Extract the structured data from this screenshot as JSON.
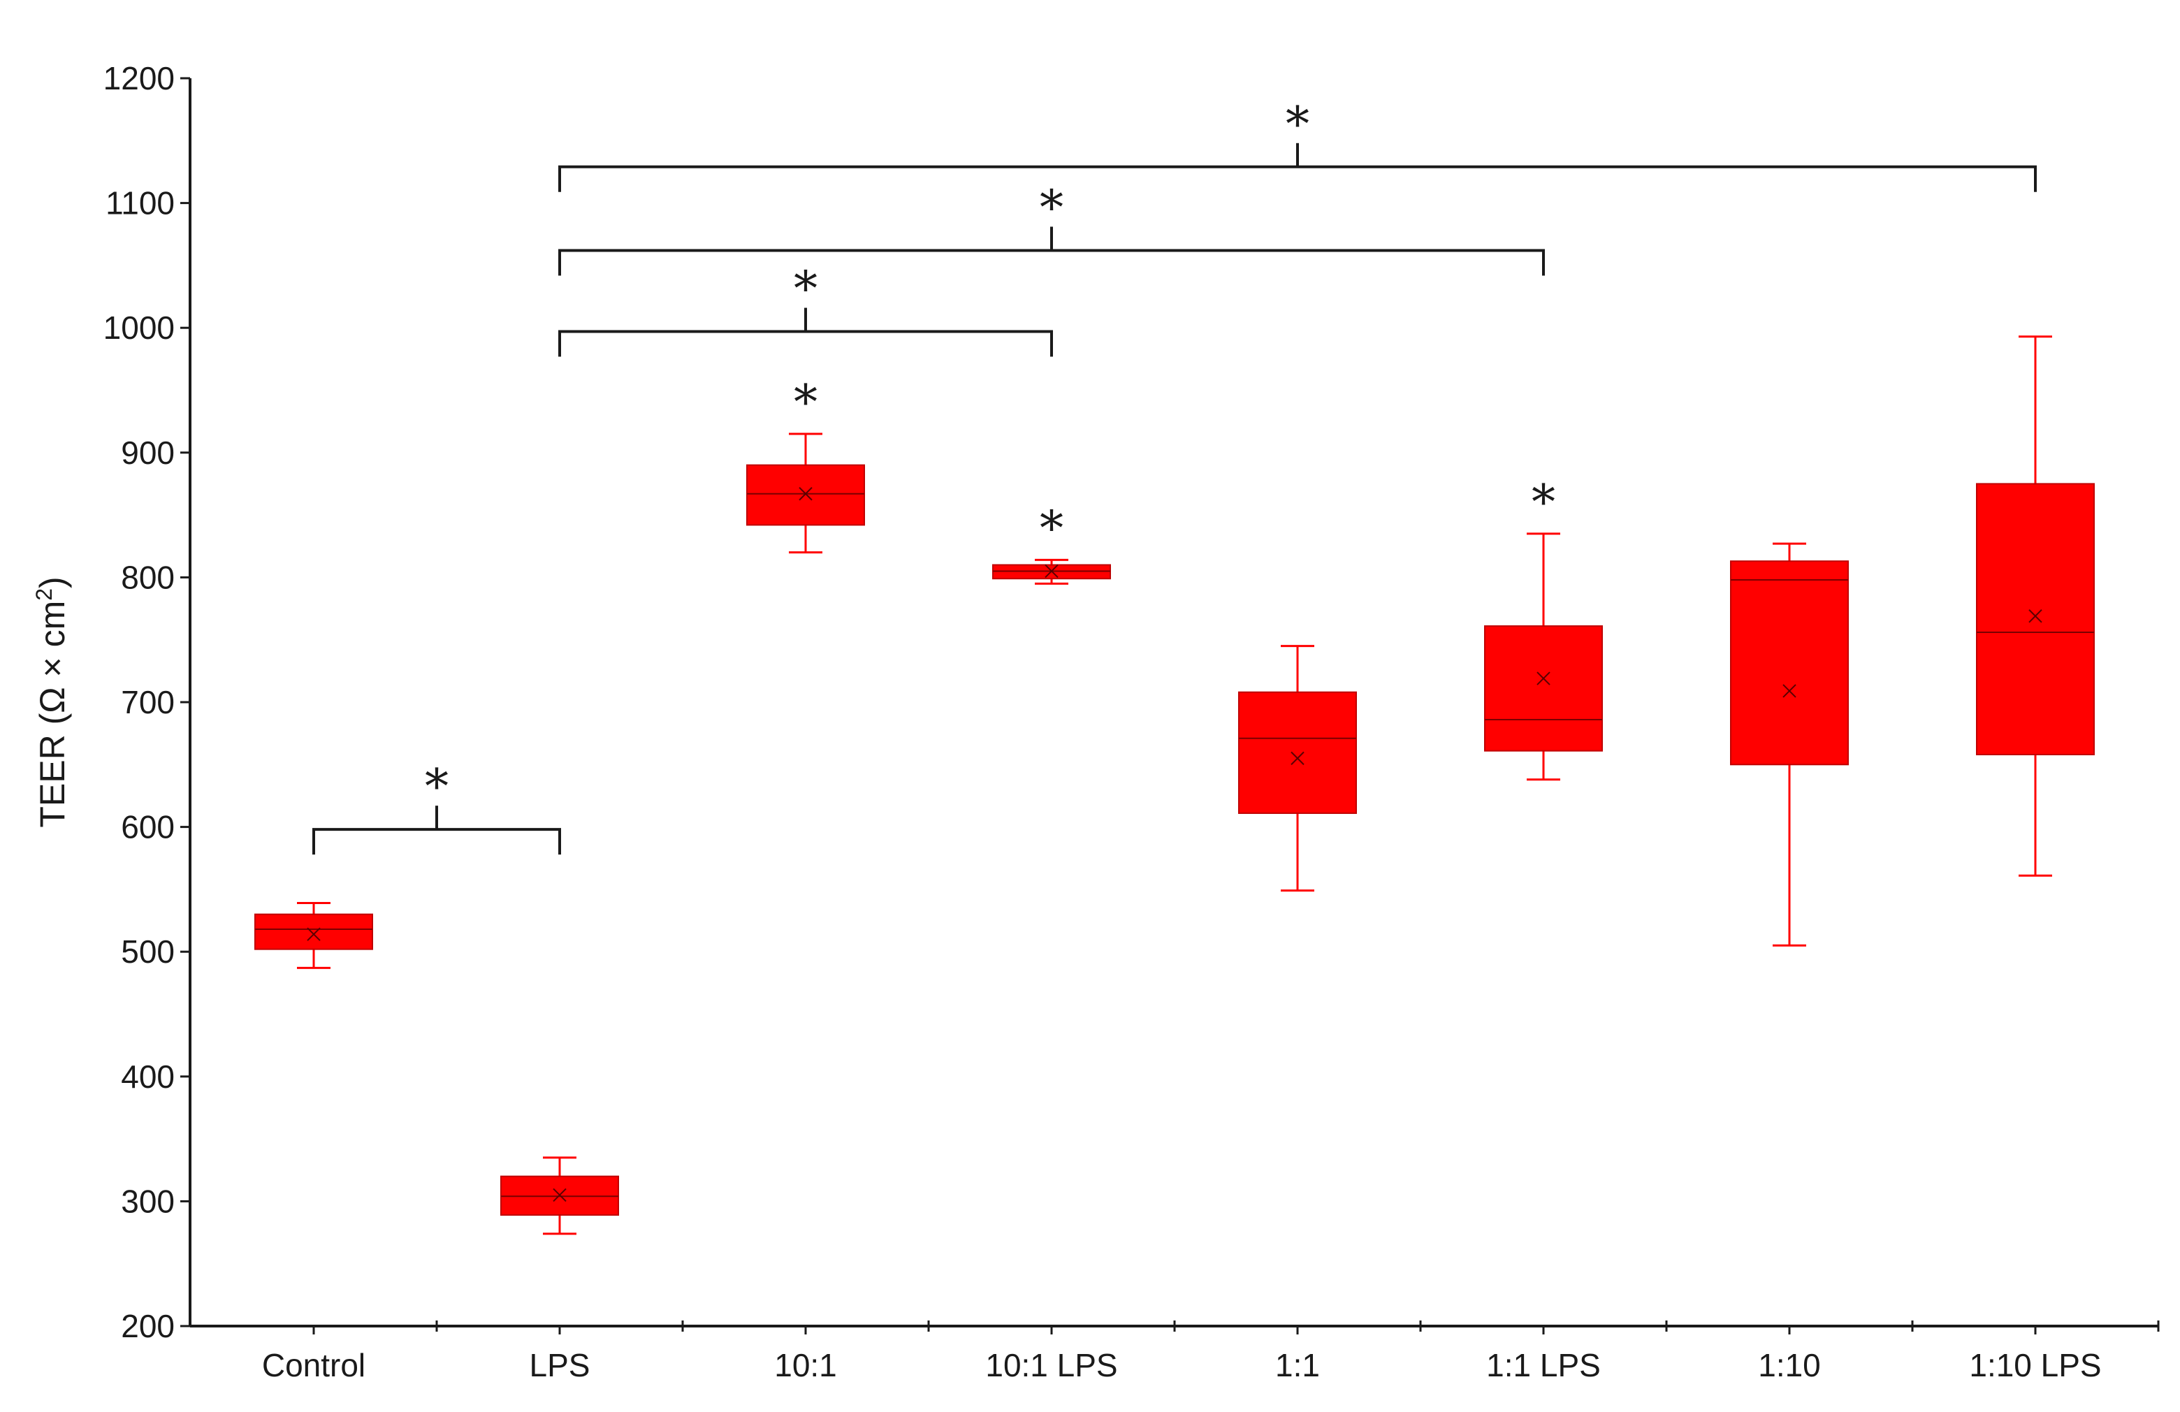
{
  "chart_data": {
    "type": "box",
    "title": "",
    "xlabel": "",
    "ylabel": "TEER (Ω × cm",
    "ylabel_superscript": "2",
    "ylabel_suffix": ")",
    "ylim": [
      200,
      1200
    ],
    "yticks": [
      200,
      300,
      400,
      500,
      600,
      700,
      800,
      900,
      1000,
      1100,
      1200
    ],
    "categories": [
      "Control",
      "LPS",
      "10:1",
      "10:1 LPS",
      "1:1",
      "1:1 LPS",
      "1:10",
      "1:10 LPS"
    ],
    "boxes": [
      {
        "min": 487,
        "q1": 502,
        "median": 518,
        "q3": 530,
        "max": 539,
        "mean": 514
      },
      {
        "min": 274,
        "q1": 289,
        "median": 304,
        "q3": 320,
        "max": 335,
        "mean": 305
      },
      {
        "min": 820,
        "q1": 842,
        "median": 867,
        "q3": 890,
        "max": 915,
        "mean": 867
      },
      {
        "min": 795,
        "q1": 799,
        "median": 805,
        "q3": 810,
        "max": 814,
        "mean": 805
      },
      {
        "min": 549,
        "q1": 611,
        "median": 671,
        "q3": 708,
        "max": 745,
        "mean": 655
      },
      {
        "min": 638,
        "q1": 661,
        "median": 686,
        "q3": 761,
        "max": 835,
        "mean": 719
      },
      {
        "min": 505,
        "q1": 650,
        "median": 798,
        "q3": 813,
        "max": 827,
        "mean": 709
      },
      {
        "min": 561,
        "q1": 658,
        "median": 756,
        "q3": 875,
        "max": 993,
        "mean": 769
      }
    ],
    "significance": {
      "symbol": "*",
      "brackets": [
        {
          "from": "Control",
          "to": "LPS",
          "y": 598
        },
        {
          "from": "LPS",
          "to": "10:1 LPS",
          "y": 997
        },
        {
          "from": "LPS",
          "to": "1:1 LPS",
          "y": 1062
        },
        {
          "from": "LPS",
          "to": "1:10 LPS",
          "y": 1129
        }
      ],
      "single_markers": [
        "10:1",
        "10:1 LPS",
        "1:1 LPS"
      ]
    },
    "colors": {
      "box_fill": "#ff0000",
      "whisker": "#ff0000",
      "axis": "#1a1a1a",
      "bracket": "#1a1a1a"
    }
  }
}
